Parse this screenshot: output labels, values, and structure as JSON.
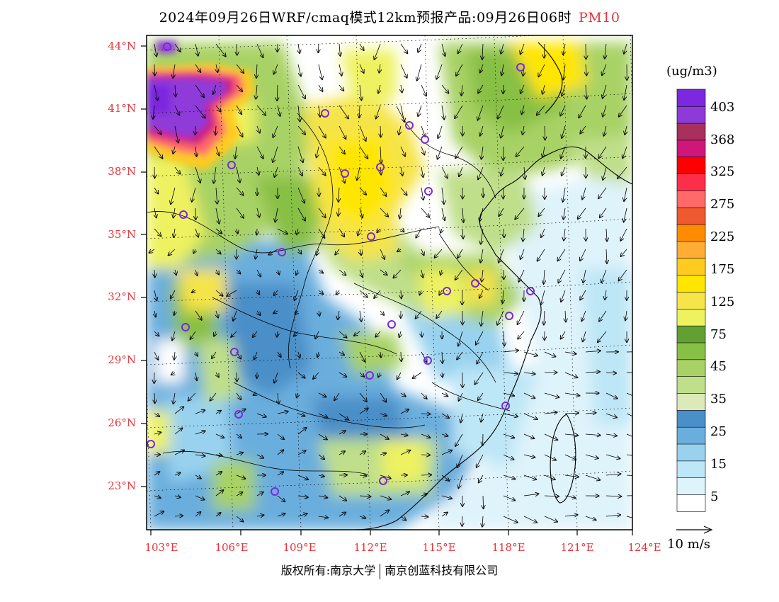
{
  "header": {
    "title": "2024年09月26日WRF/cmaq模式12km预报产品:09月26日06时",
    "product": "PM10"
  },
  "map": {
    "lat_labels": [
      "44°N",
      "41°N",
      "38°N",
      "35°N",
      "32°N",
      "29°N",
      "26°N",
      "23°N"
    ],
    "lon_labels": [
      "103°E",
      "106°E",
      "109°E",
      "112°E",
      "115°E",
      "118°E",
      "121°E",
      "124°E"
    ],
    "lat_range": [
      20.9,
      44.6
    ],
    "lon_range": [
      102.5,
      124.5
    ]
  },
  "colorbar": {
    "unit": "(ug/m3)",
    "colors": [
      "#ffffff",
      "#dff3fb",
      "#bde6f6",
      "#98d2ef",
      "#6aaedd",
      "#4b8fc8",
      "#dce9b8",
      "#bfdf8a",
      "#a8d265",
      "#88bf45",
      "#62a032",
      "#eef260",
      "#f5e44a",
      "#ffe600",
      "#ffcb1e",
      "#ffad33",
      "#ff8c00",
      "#f0582e",
      "#ff6969",
      "#ff2f4c",
      "#ff0000",
      "#cf177a",
      "#a8305c",
      "#8e3ad9",
      "#7b28e0"
    ],
    "labels": [
      "5",
      "15",
      "25",
      "35",
      "45",
      "75",
      "125",
      "175",
      "225",
      "275",
      "325",
      "368",
      "403"
    ]
  },
  "legend": {
    "wind_label": "10 m/s"
  },
  "footer": {
    "copyright_left": "版权所有:南京大学",
    "copyright_right": "南京创蓝科技有限公司"
  }
}
